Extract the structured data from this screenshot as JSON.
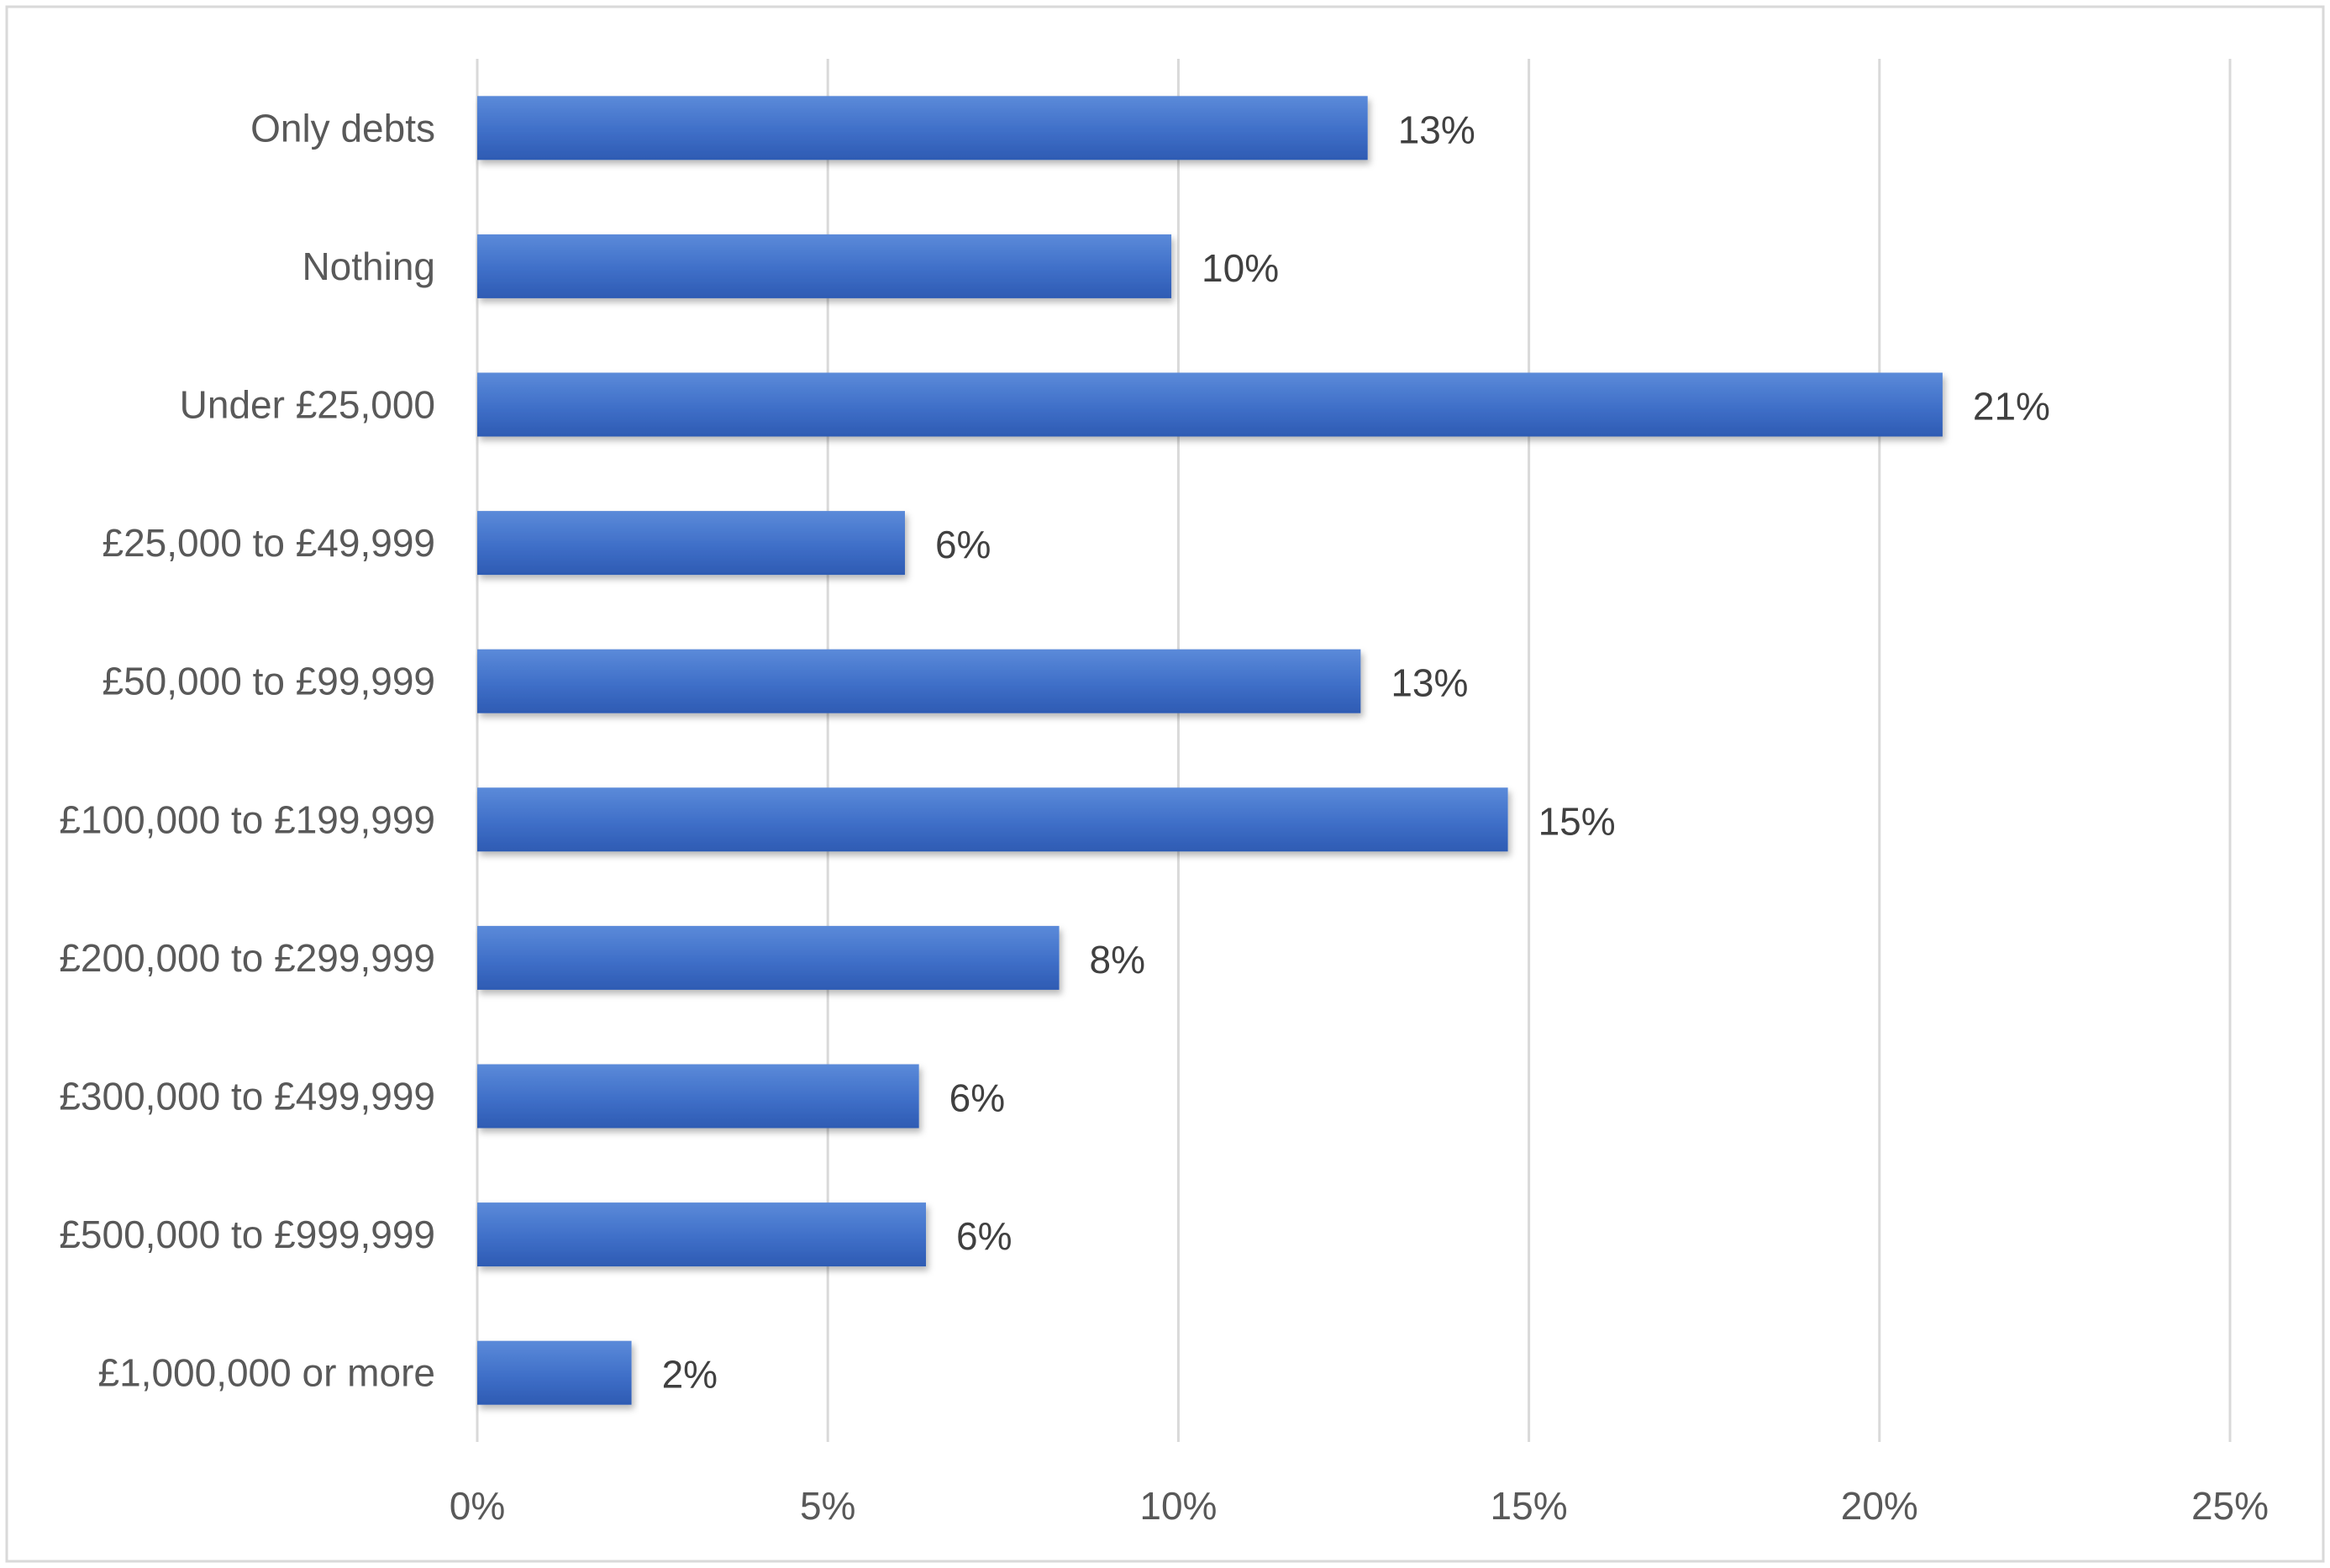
{
  "chart_data": {
    "type": "bar",
    "orientation": "horizontal",
    "categories": [
      "Only debts",
      "Nothing",
      "Under £25,000",
      "£25,000 to £49,999",
      "£50,000 to £99,999",
      "£100,000 to £199,999",
      "£200,000 to £299,999",
      "£300,000 to £499,999",
      "£500,000 to £999,999",
      "£1,000,000 or more"
    ],
    "values": [
      12.7,
      9.9,
      20.9,
      6.1,
      12.6,
      14.7,
      8.3,
      6.3,
      6.4,
      2.2
    ],
    "data_labels": [
      "13%",
      "10%",
      "21%",
      "6%",
      "13%",
      "15%",
      "8%",
      "6%",
      "6%",
      "2%"
    ],
    "xlim": [
      0,
      25
    ],
    "x_ticks": [
      0,
      5,
      10,
      15,
      20,
      25
    ],
    "x_tick_labels": [
      "0%",
      "5%",
      "10%",
      "15%",
      "20%",
      "25%"
    ],
    "title": "",
    "xlabel": "",
    "ylabel": "",
    "grid": "vertical",
    "legend": "none",
    "bar_color": "#4472C4"
  }
}
